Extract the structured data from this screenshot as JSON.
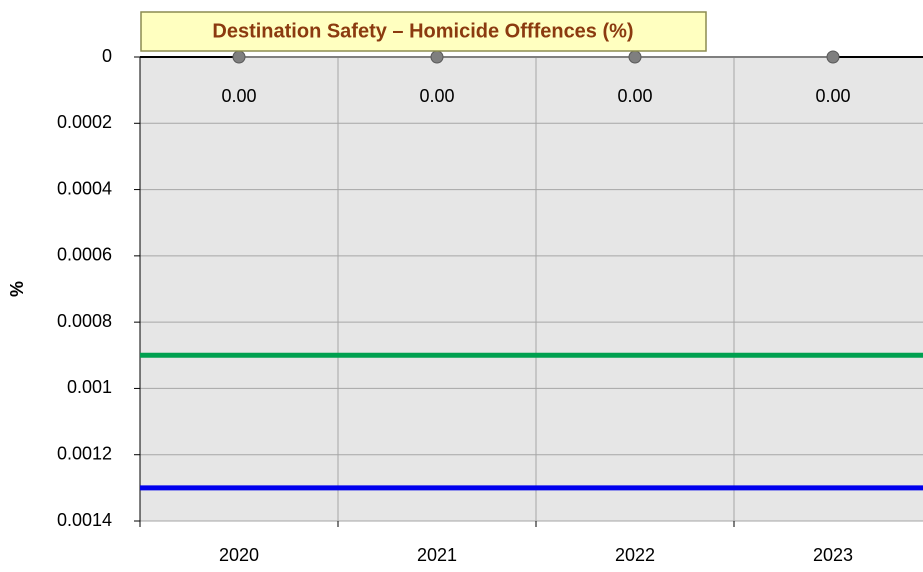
{
  "chart_data": {
    "type": "line",
    "title": "Destination Safety – Homicide Offfences (%)",
    "y_label": "%",
    "categories": [
      "2020",
      "2021",
      "2022",
      "2023"
    ],
    "series": [
      {
        "color": "#7f7f7f",
        "values": [
          0,
          0,
          0,
          0
        ],
        "value_labels": [
          "0.00",
          "0.00",
          "0.00",
          "0.00"
        ]
      }
    ],
    "reference_lines": [
      {
        "value": 0.0009,
        "color": "#00a050"
      },
      {
        "value": 0.0013,
        "color": "#0000ee"
      }
    ],
    "ylim": [
      0,
      0.0014
    ],
    "y_inverted": true,
    "yticks": [
      0,
      0.0002,
      0.0004,
      0.0006,
      0.0008,
      0.001,
      0.0012,
      0.0014
    ],
    "grid": true
  }
}
